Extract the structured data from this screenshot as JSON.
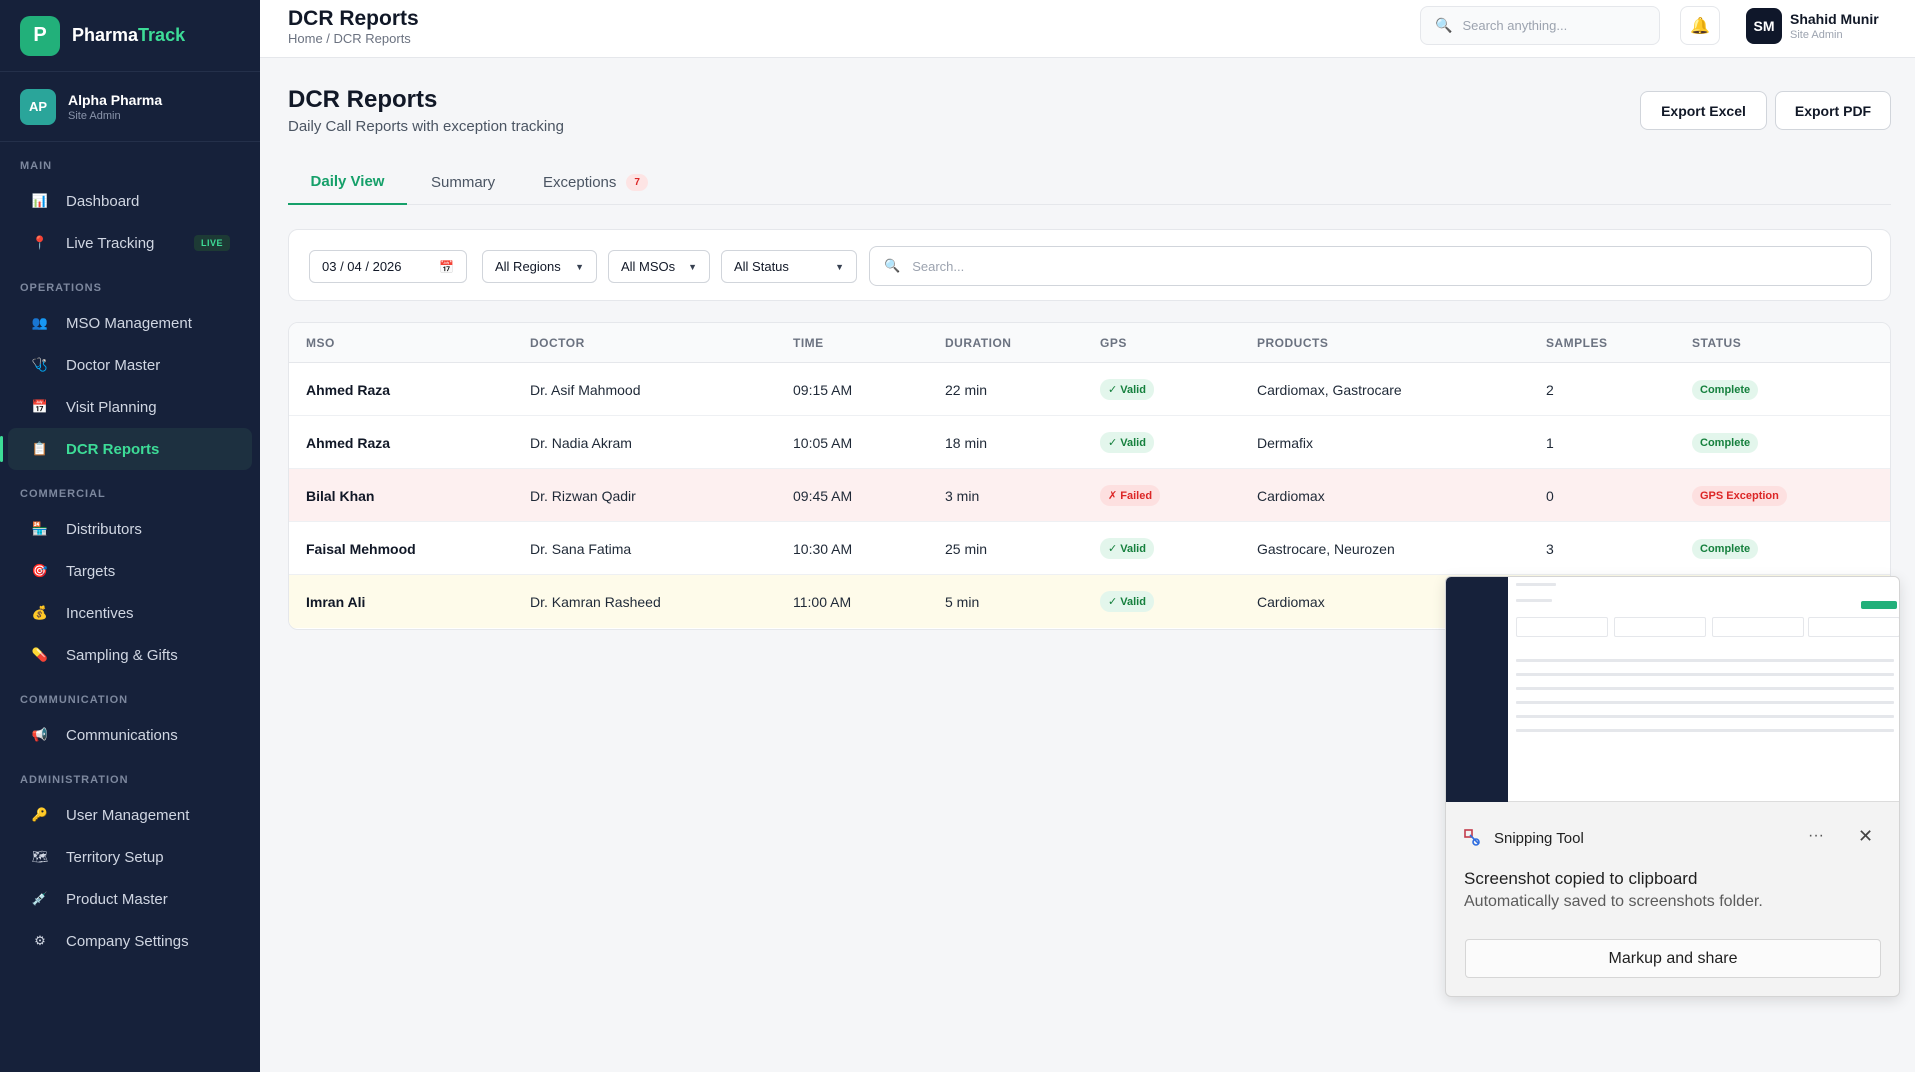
{
  "app": {
    "name_part1": "Pharma",
    "name_part2": "Track",
    "logo_letter": "P"
  },
  "org": {
    "initials": "AP",
    "name": "Alpha Pharma",
    "role": "Site Admin"
  },
  "sidebar": {
    "sections": {
      "main": "MAIN",
      "operations": "OPERATIONS",
      "commercial": "COMMERCIAL",
      "communication": "COMMUNICATION",
      "administration": "ADMINISTRATION"
    },
    "items": {
      "dashboard": "Dashboard",
      "live_tracking": "Live Tracking",
      "live_badge": "LIVE",
      "mso_management": "MSO Management",
      "doctor_master": "Doctor Master",
      "visit_planning": "Visit Planning",
      "dcr_reports": "DCR Reports",
      "distributors": "Distributors",
      "targets": "Targets",
      "incentives": "Incentives",
      "sampling_gifts": "Sampling & Gifts",
      "communications": "Communications",
      "user_management": "User Management",
      "territory_setup": "Territory Setup",
      "product_master": "Product Master",
      "company_settings": "Company Settings"
    }
  },
  "topbar": {
    "title": "DCR Reports",
    "breadcrumb": "Home / DCR Reports",
    "search_placeholder": "Search anything...",
    "user_initials": "SM",
    "user_name": "Shahid Munir",
    "user_role": "Site Admin"
  },
  "page": {
    "title": "DCR Reports",
    "subtitle": "Daily Call Reports with exception tracking",
    "export_excel": "Export Excel",
    "export_pdf": "Export PDF"
  },
  "tabs": {
    "daily": "Daily View",
    "summary": "Summary",
    "exceptions": "Exceptions",
    "exceptions_count": "7"
  },
  "filters": {
    "date": "03 / 04 / 2026",
    "region": "All Regions",
    "mso": "All MSOs",
    "status": "All Status",
    "search_placeholder": "Search..."
  },
  "table": {
    "headers": {
      "mso": "MSO",
      "doctor": "DOCTOR",
      "time": "TIME",
      "duration": "DURATION",
      "gps": "GPS",
      "products": "PRODUCTS",
      "samples": "SAMPLES",
      "status": "STATUS"
    },
    "rows": [
      {
        "mso": "Ahmed Raza",
        "doctor": "Dr. Asif Mahmood",
        "time": "09:15 AM",
        "duration": "22 min",
        "gps": "✓ Valid",
        "products": "Cardiomax, Gastrocare",
        "samples": "2",
        "status": "Complete"
      },
      {
        "mso": "Ahmed Raza",
        "doctor": "Dr. Nadia Akram",
        "time": "10:05 AM",
        "duration": "18 min",
        "gps": "✓ Valid",
        "products": "Dermafix",
        "samples": "1",
        "status": "Complete"
      },
      {
        "mso": "Bilal Khan",
        "doctor": "Dr. Rizwan Qadir",
        "time": "09:45 AM",
        "duration": "3 min",
        "gps": "✗ Failed",
        "products": "Cardiomax",
        "samples": "0",
        "status": "GPS Exception"
      },
      {
        "mso": "Faisal Mehmood",
        "doctor": "Dr. Sana Fatima",
        "time": "10:30 AM",
        "duration": "25 min",
        "gps": "✓ Valid",
        "products": "Gastrocare, Neurozen",
        "samples": "3",
        "status": "Complete"
      },
      {
        "mso": "Imran Ali",
        "doctor": "Dr. Kamran Rasheed",
        "time": "11:00 AM",
        "duration": "5 min",
        "gps": "✓ Valid",
        "products": "Cardiomax",
        "samples": "",
        "status": ""
      }
    ]
  },
  "snipping_tool": {
    "app_name": "Snipping Tool",
    "more": "···",
    "close": "✕",
    "message": "Screenshot copied to clipboard",
    "sub_message": "Automatically saved to screenshots folder.",
    "action": "Markup and share"
  },
  "colors": {
    "sidebar_bg": "#16213a",
    "accent": "#16a06a",
    "danger": "#dc2626"
  }
}
